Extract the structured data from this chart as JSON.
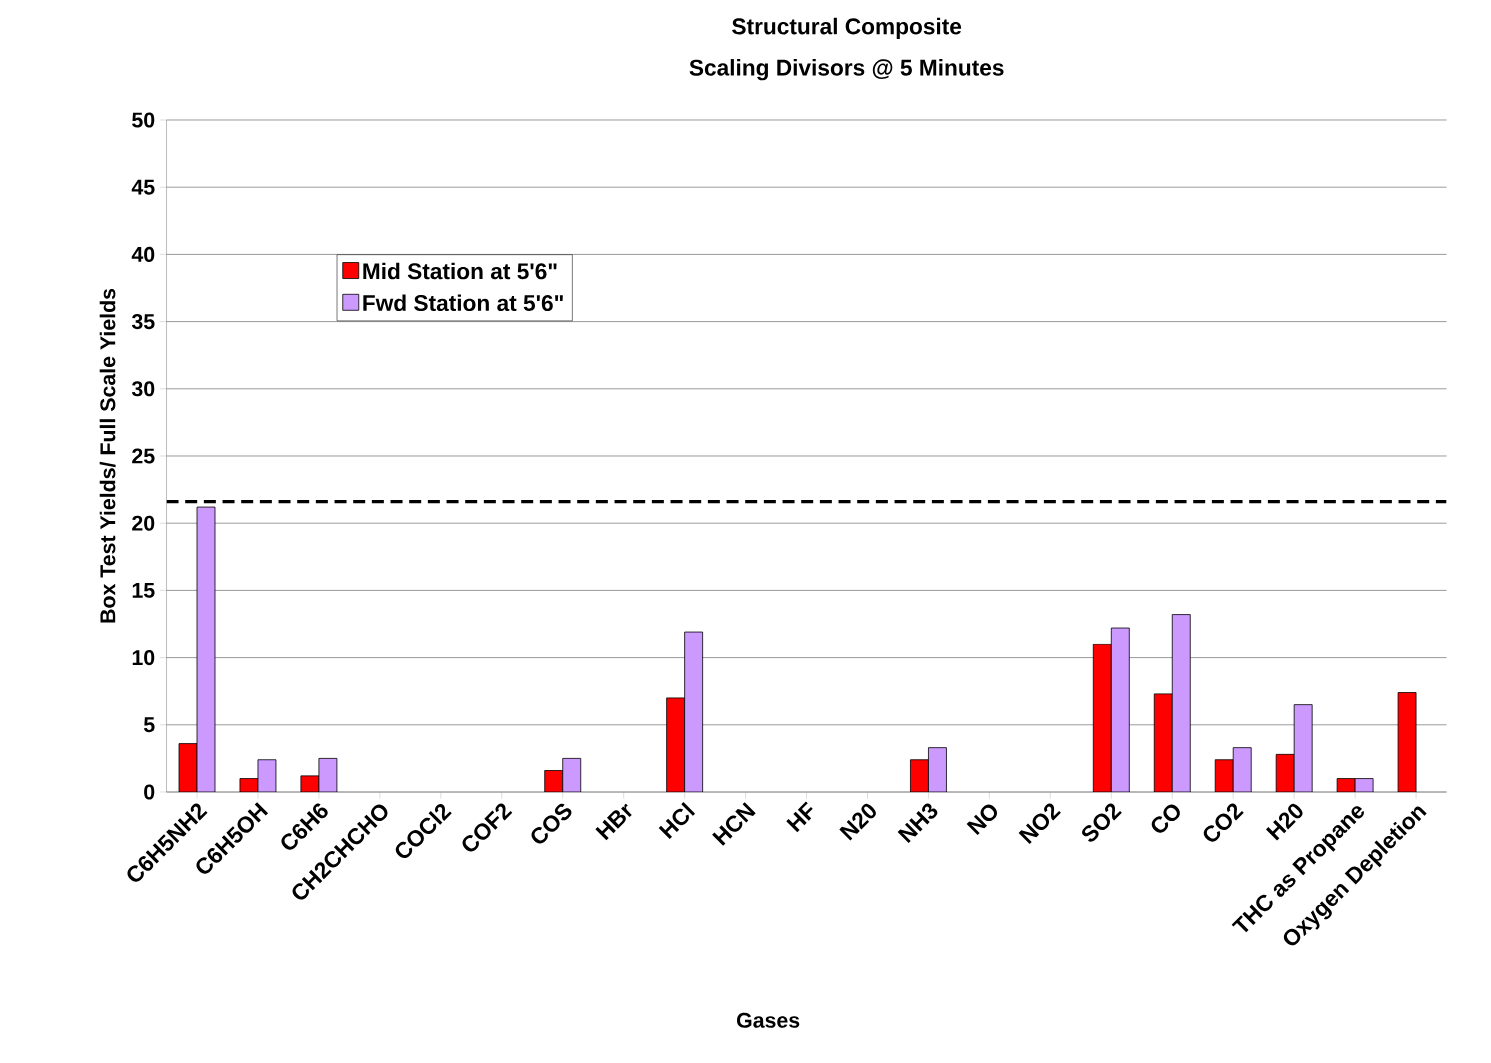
{
  "chart_data": {
    "type": "bar",
    "title": "Structural Composite",
    "subtitle": "Scaling Divisors @ 5 Minutes",
    "xlabel": "Gases",
    "ylabel": "Box Test Yields/ Full Scale Yields",
    "categories": [
      "C6H5NH2",
      "C6H5OH",
      "C6H6",
      "CH2CHCHO",
      "COCl2",
      "COF2",
      "COS",
      "HBr",
      "HCl",
      "HCN",
      "HF",
      "N20",
      "NH3",
      "NO",
      "NO2",
      "SO2",
      "CO",
      "CO2",
      "H20",
      "THC as Propane",
      "Oxygen Depletion"
    ],
    "series": [
      {
        "name": "Mid Station at 5'6\"",
        "color": "#ff0000",
        "values": [
          3.6,
          1.0,
          1.2,
          null,
          null,
          null,
          1.6,
          null,
          7.0,
          null,
          null,
          null,
          2.4,
          null,
          null,
          11.0,
          7.3,
          2.4,
          2.8,
          1.0,
          7.4
        ]
      },
      {
        "name": "Fwd Station at 5'6\"",
        "color": "#cc99ff",
        "values": [
          21.2,
          2.4,
          2.5,
          null,
          null,
          null,
          2.5,
          null,
          11.9,
          null,
          null,
          null,
          3.3,
          null,
          null,
          12.2,
          13.2,
          3.3,
          6.5,
          1.0,
          null
        ]
      }
    ],
    "ylim": [
      0,
      50
    ],
    "yticks": [
      0,
      5,
      10,
      15,
      20,
      25,
      30,
      35,
      40,
      45,
      50
    ],
    "ref_lines": [
      {
        "axis": "y",
        "value": 21.6,
        "color": "#000000",
        "line_style": "dashed"
      }
    ],
    "grid": "y",
    "legend": "top left"
  }
}
